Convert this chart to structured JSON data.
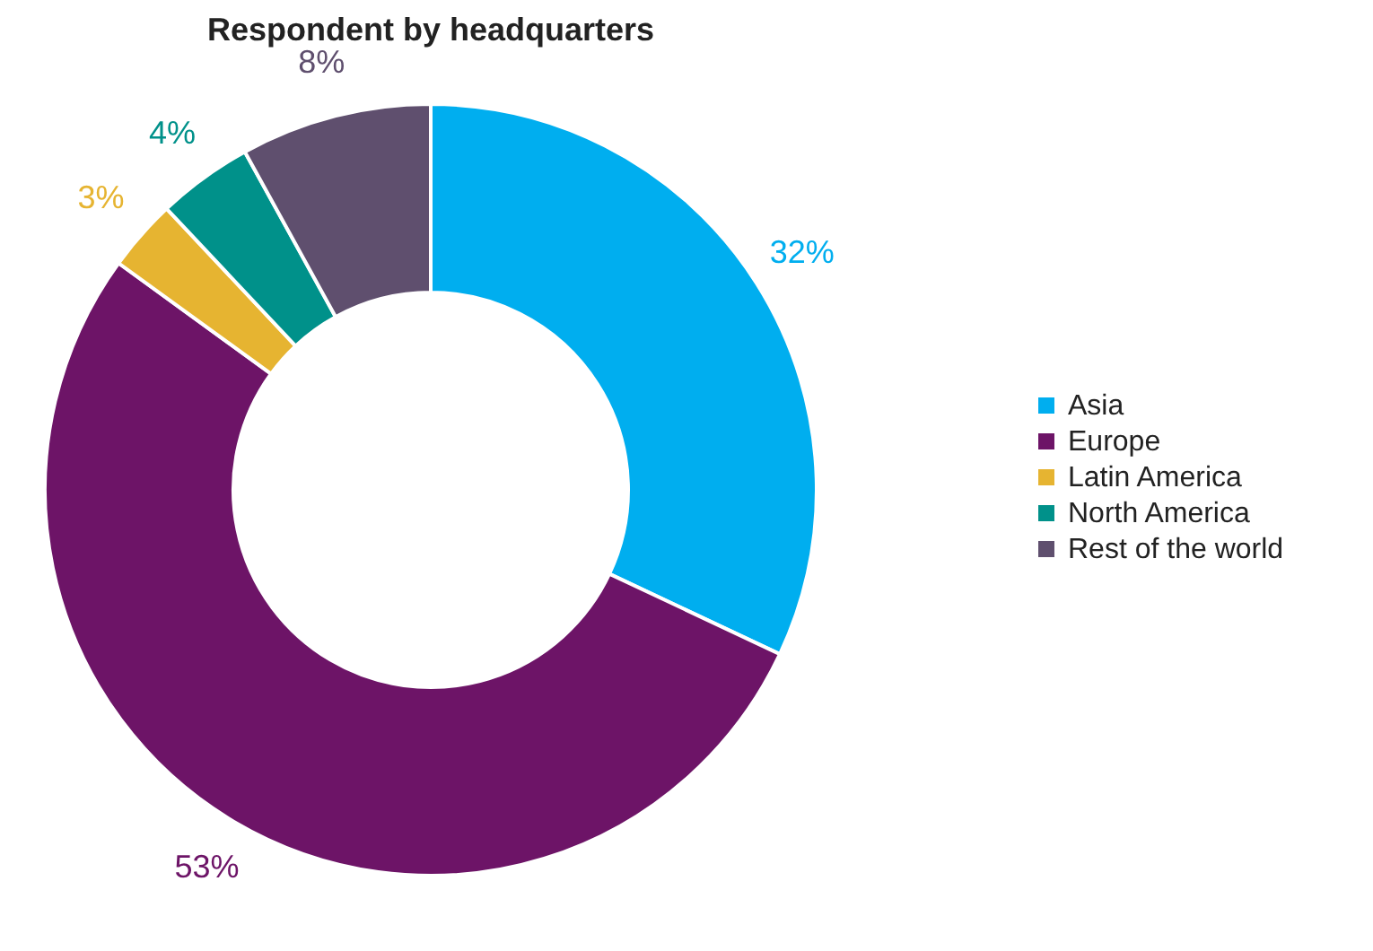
{
  "chart_data": {
    "type": "donut",
    "title": "Respondent by headquarters",
    "categories": [
      "Asia",
      "Europe",
      "Latin America",
      "North America",
      "Rest of the world"
    ],
    "values": [
      32,
      53,
      3,
      4,
      8
    ],
    "colors": [
      "#00aeef",
      "#6d1467",
      "#e6b431",
      "#00918a",
      "#5f4f6e"
    ],
    "value_labels": [
      "32%",
      "53%",
      "3%",
      "4%",
      "8%"
    ],
    "legend": "right"
  }
}
